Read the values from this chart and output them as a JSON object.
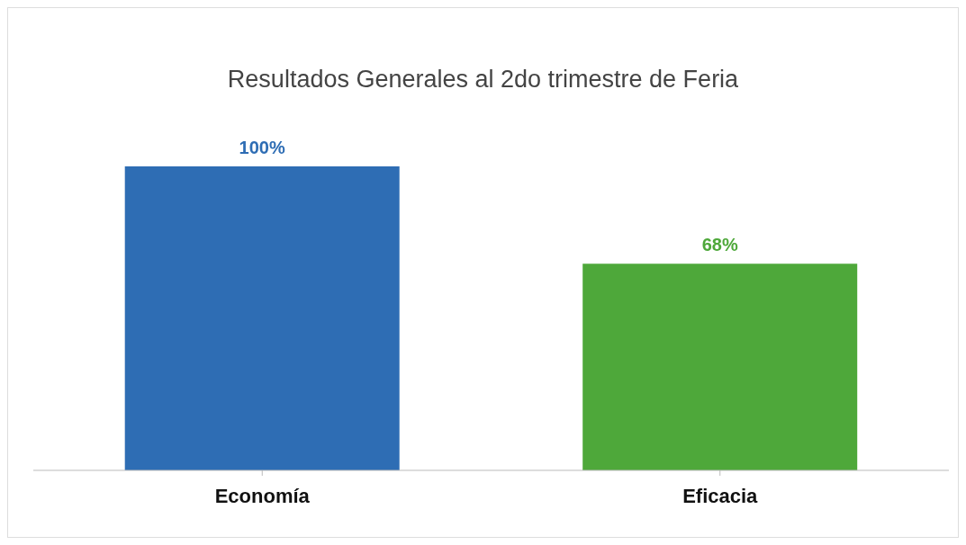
{
  "chart_data": {
    "type": "bar",
    "title": "Resultados Generales al 2do trimestre de Feria",
    "categories": [
      "Economía",
      "Eficacia"
    ],
    "values": [
      100,
      68
    ],
    "colors": [
      "#2e6db4",
      "#4ea83a"
    ],
    "value_labels": [
      "100%",
      "68%"
    ],
    "grid": false
  }
}
